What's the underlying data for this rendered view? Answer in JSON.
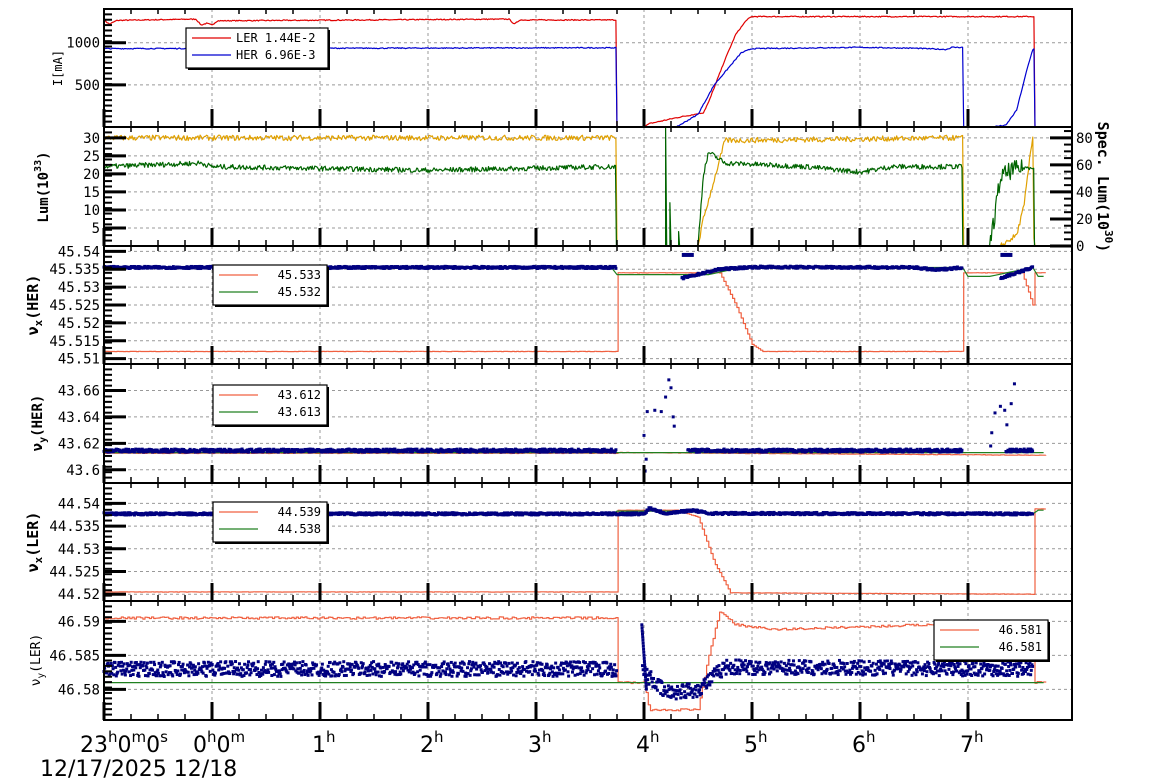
{
  "chart_data": [
    {
      "type": "line",
      "panel": "beam-current",
      "ylabel": "I[mA]",
      "yticks": [
        500,
        1000
      ],
      "ylim": [
        0,
        1400
      ],
      "legend": [
        {
          "name": "LER",
          "value": "1.44E-2",
          "color": "#e00000"
        },
        {
          "name": "HER",
          "value": "6.96E-3",
          "color": "#0000d0"
        }
      ],
      "series": [
        {
          "name": "LER",
          "color": "#e00000",
          "points": [
            [
              0,
              1270
            ],
            [
              0.05,
              1230
            ],
            [
              0.1,
              1270
            ],
            [
              0.9,
              1280
            ],
            [
              0.95,
              1210
            ],
            [
              1.0,
              1260
            ],
            [
              1.1,
              1270
            ],
            [
              3.75,
              1280
            ],
            [
              3.8,
              1220
            ],
            [
              3.85,
              1270
            ],
            [
              4.35,
              1270
            ],
            [
              4.35,
              0
            ],
            [
              4.6,
              0
            ],
            [
              4.9,
              160
            ],
            [
              5.05,
              200
            ],
            [
              5.2,
              520
            ],
            [
              5.4,
              1050
            ],
            [
              5.5,
              1160
            ],
            [
              5.55,
              1300
            ],
            [
              8.25,
              1300
            ],
            [
              8.25,
              1310
            ],
            [
              8.6,
              1300
            ],
            [
              8.61,
              0
            ]
          ]
        },
        {
          "name": "HER",
          "color": "#0000d0",
          "points": [
            [
              0,
              930
            ],
            [
              1.0,
              940
            ],
            [
              3.0,
              945
            ],
            [
              4.35,
              940
            ],
            [
              4.35,
              0
            ],
            [
              4.9,
              0
            ],
            [
              5.2,
              200
            ],
            [
              5.6,
              850
            ],
            [
              5.7,
              920
            ],
            [
              6.3,
              940
            ],
            [
              7.5,
              945
            ],
            [
              7.8,
              930
            ],
            [
              7.95,
              940
            ],
            [
              7.95,
              0
            ],
            [
              8.45,
              0
            ],
            [
              8.7,
              80
            ],
            [
              8.9,
              400
            ],
            [
              9.2,
              870
            ],
            [
              8.61,
              920
            ]
          ]
        }
      ]
    },
    {
      "type": "line",
      "panel": "luminosity",
      "ylabel": "Lum(10^33)",
      "yticks": [
        5,
        10,
        15,
        20,
        25,
        30
      ],
      "ylim": [
        0,
        33
      ],
      "y2label": "Spec. Lum(10^30)",
      "y2ticks": [
        0,
        20,
        40,
        60,
        80
      ],
      "y2lim": [
        0,
        88
      ],
      "series": [
        {
          "name": "Lum",
          "color": "#006400",
          "description": "~22-23 steady, dip to 0 at 3.8h–4.3h, recovery peak ~26 at 4.35h, ~22 until 6.8h, 0 until 7.05h, noisy recovery ~21-22 to 7.9h"
        },
        {
          "name": "Spec. Lum",
          "color": "#e0a000",
          "description": "~80 steady on y2, 0 during 3.8h–4.3h, ramp to ~80 by 4.55h, 0 at 6.8h, slow ramp 7.2h–7.85h to ~80"
        }
      ]
    },
    {
      "type": "scatter",
      "panel": "nu-x-HER",
      "ylabel": "νx(HER)",
      "yticks": [
        45.51,
        45.515,
        45.52,
        45.525,
        45.53,
        45.535,
        45.54
      ],
      "ylim": [
        45.5085,
        45.5415
      ],
      "legend": [
        {
          "value": "45.533",
          "color": "#f06040"
        },
        {
          "value": "45.532",
          "color": "#208020"
        }
      ]
    },
    {
      "type": "scatter",
      "panel": "nu-y-HER",
      "ylabel": "νy(HER)",
      "yticks": [
        43.6,
        43.62,
        43.64,
        43.66
      ],
      "ylim": [
        43.59,
        43.68
      ],
      "legend": [
        {
          "value": "43.612",
          "color": "#f06040"
        },
        {
          "value": "43.613",
          "color": "#208020"
        }
      ]
    },
    {
      "type": "scatter",
      "panel": "nu-x-LER",
      "ylabel": "νx(LER)",
      "yticks": [
        44.52,
        44.525,
        44.53,
        44.535,
        44.54
      ],
      "ylim": [
        44.5185,
        44.5445
      ],
      "legend": [
        {
          "value": "44.539",
          "color": "#f06040"
        },
        {
          "value": "44.538",
          "color": "#208020"
        }
      ]
    },
    {
      "type": "scatter",
      "panel": "nu-y-LER",
      "ylabel": "νy(LER)",
      "yticks": [
        46.58,
        46.585,
        46.59
      ],
      "ylim": [
        46.5755,
        46.593
      ],
      "legend": [
        {
          "value": "46.581",
          "color": "#f06040"
        },
        {
          "value": "46.581",
          "color": "#208020"
        }
      ]
    }
  ],
  "x_axis": {
    "tick_labels": [
      {
        "main": "23",
        "sup": "h",
        "rest": "0",
        "sup2": "m",
        "rest2": "0",
        "sup3": "s",
        "hour": 0
      },
      {
        "main": "0",
        "sup": "h",
        "rest": "0",
        "sup2": "m",
        "hour": 1
      },
      {
        "main": "1",
        "sup": "h",
        "hour": 2
      },
      {
        "main": "2",
        "sup": "h",
        "hour": 3
      },
      {
        "main": "3",
        "sup": "h",
        "hour": 4
      },
      {
        "main": "4",
        "sup": "h",
        "hour": 5
      },
      {
        "main": "5",
        "sup": "h",
        "hour": 6
      },
      {
        "main": "6",
        "sup": "h",
        "hour": 7
      },
      {
        "main": "7",
        "sup": "h",
        "hour": 8
      }
    ],
    "date_label": "12/17/2025 12/18"
  },
  "panel_labels": {
    "current": "I[mA]",
    "lum": "Lum(10",
    "lum_exp": "33",
    "lum_close": ")",
    "spec": "Spec. Lum(10",
    "spec_exp": "30",
    "spec_close": ")",
    "nux_her": "HER",
    "nuy_her": "HER",
    "nux_ler": "LER",
    "nuy_ler": "LER"
  }
}
